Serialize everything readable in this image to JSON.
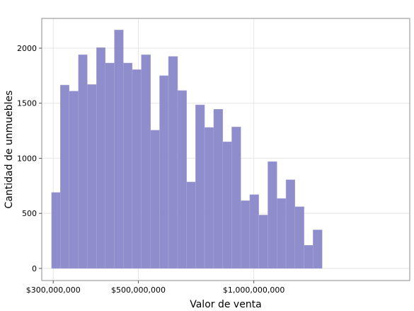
{
  "chart_data": {
    "type": "bar",
    "title": "",
    "xlabel": "Valor de venta",
    "ylabel": "Cantidad de unmuebles",
    "x_scale": "log",
    "xlim": [
      280000000,
      2550000000
    ],
    "ylim": [
      -110,
      2270
    ],
    "grid": true,
    "bar_color": "#8A87C9",
    "bars": [
      {
        "x0": 297000000,
        "x1": 313000000,
        "value": 690
      },
      {
        "x0": 313000000,
        "x1": 330000000,
        "value": 1665
      },
      {
        "x0": 330000000,
        "x1": 349000000,
        "value": 1610
      },
      {
        "x0": 349000000,
        "x1": 368000000,
        "value": 1940
      },
      {
        "x0": 368000000,
        "x1": 389000000,
        "value": 1670
      },
      {
        "x0": 389000000,
        "x1": 410000000,
        "value": 2005
      },
      {
        "x0": 410000000,
        "x1": 433000000,
        "value": 1865
      },
      {
        "x0": 433000000,
        "x1": 457000000,
        "value": 2165
      },
      {
        "x0": 457000000,
        "x1": 482000000,
        "value": 1865
      },
      {
        "x0": 482000000,
        "x1": 509000000,
        "value": 1805
      },
      {
        "x0": 509000000,
        "x1": 538000000,
        "value": 1940
      },
      {
        "x0": 538000000,
        "x1": 568000000,
        "value": 1255
      },
      {
        "x0": 568000000,
        "x1": 599000000,
        "value": 1750
      },
      {
        "x0": 599000000,
        "x1": 633000000,
        "value": 1925
      },
      {
        "x0": 633000000,
        "x1": 668000000,
        "value": 1615
      },
      {
        "x0": 668000000,
        "x1": 705000000,
        "value": 785
      },
      {
        "x0": 705000000,
        "x1": 744000000,
        "value": 1485
      },
      {
        "x0": 744000000,
        "x1": 786000000,
        "value": 1280
      },
      {
        "x0": 786000000,
        "x1": 830000000,
        "value": 1445
      },
      {
        "x0": 830000000,
        "x1": 876000000,
        "value": 1150
      },
      {
        "x0": 876000000,
        "x1": 925000000,
        "value": 1285
      },
      {
        "x0": 925000000,
        "x1": 976000000,
        "value": 615
      },
      {
        "x0": 976000000,
        "x1": 1030000000,
        "value": 670
      },
      {
        "x0": 1030000000,
        "x1": 1088000000,
        "value": 485
      },
      {
        "x0": 1088000000,
        "x1": 1149000000,
        "value": 970
      },
      {
        "x0": 1149000000,
        "x1": 1213000000,
        "value": 635
      },
      {
        "x0": 1213000000,
        "x1": 1280000000,
        "value": 805
      },
      {
        "x0": 1280000000,
        "x1": 1352000000,
        "value": 560
      },
      {
        "x0": 1352000000,
        "x1": 1427000000,
        "value": 210
      },
      {
        "x0": 1427000000,
        "x1": 1507000000,
        "value": 350
      }
    ],
    "x_ticks": [
      {
        "value": 300000000,
        "label": "$300,000,000"
      },
      {
        "value": 500000000,
        "label": "$500,000,000"
      },
      {
        "value": 1000000000,
        "label": "$1,000,000,000"
      }
    ],
    "y_ticks": [
      {
        "value": 0,
        "label": "0"
      },
      {
        "value": 500,
        "label": "500"
      },
      {
        "value": 1000,
        "label": "1000"
      },
      {
        "value": 1500,
        "label": "1500"
      },
      {
        "value": 2000,
        "label": "2000"
      }
    ]
  }
}
